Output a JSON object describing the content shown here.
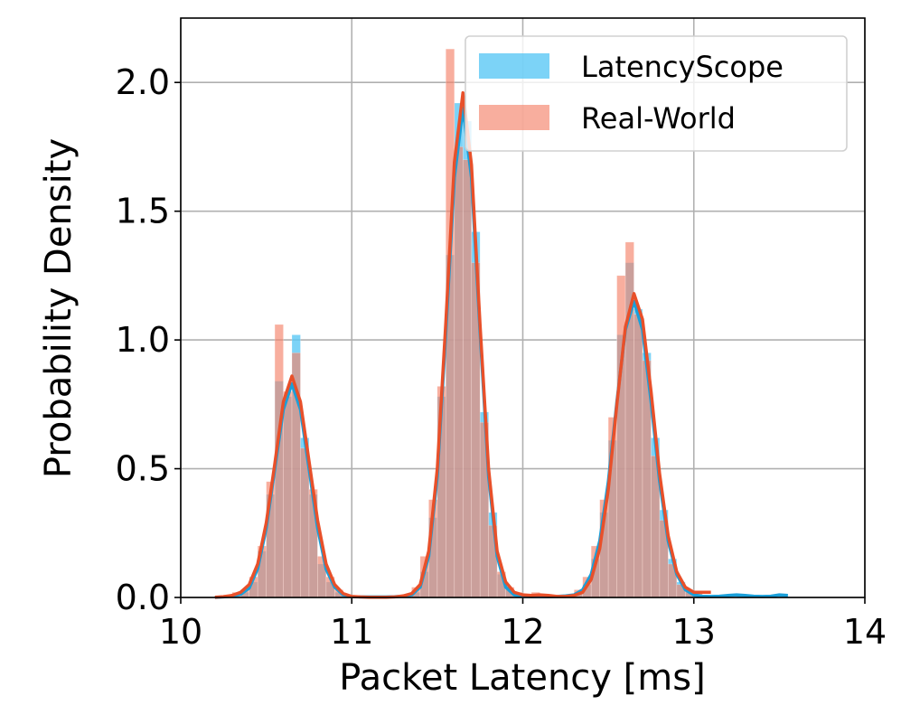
{
  "chart_data": {
    "type": "histogram",
    "xlabel": "Packet Latency [ms]",
    "ylabel": "Probability Density",
    "xlim": [
      10,
      14
    ],
    "ylim": [
      0,
      2.25
    ],
    "xticks": [
      10,
      11,
      12,
      13,
      14
    ],
    "yticks": [
      {
        "value": 0,
        "label": "0.0"
      },
      {
        "value": 0.5,
        "label": "0.5"
      },
      {
        "value": 1,
        "label": "1.0"
      },
      {
        "value": 1.5,
        "label": "1.5"
      },
      {
        "value": 2,
        "label": "2.0"
      }
    ],
    "grid": true,
    "legend": "upper right",
    "bins": [
      10.25,
      10.3,
      10.35,
      10.4,
      10.45,
      10.5,
      10.55,
      10.6,
      10.65,
      10.7,
      10.75,
      10.8,
      10.85,
      10.9,
      10.95,
      11,
      11.05,
      11.1,
      11.15,
      11.2,
      11.25,
      11.3,
      11.35,
      11.4,
      11.45,
      11.5,
      11.55,
      11.6,
      11.65,
      11.7,
      11.75,
      11.8,
      11.85,
      11.9,
      11.95,
      12,
      12.05,
      12.1,
      12.15,
      12.2,
      12.25,
      12.3,
      12.35,
      12.4,
      12.45,
      12.5,
      12.55,
      12.6,
      12.65,
      12.7,
      12.75,
      12.8,
      12.85,
      12.9,
      12.95,
      13,
      13.05,
      13.1,
      13.15,
      13.2,
      13.25,
      13.3,
      13.35,
      13.4,
      13.45,
      13.5,
      13.55
    ],
    "kde_x": [
      10.2,
      10.25,
      10.3,
      10.35,
      10.4,
      10.45,
      10.5,
      10.55,
      10.6,
      10.65,
      10.7,
      10.75,
      10.8,
      10.85,
      10.9,
      10.95,
      11,
      11.05,
      11.1,
      11.15,
      11.2,
      11.25,
      11.3,
      11.35,
      11.4,
      11.45,
      11.5,
      11.55,
      11.6,
      11.65,
      11.7,
      11.75,
      11.8,
      11.85,
      11.9,
      11.95,
      12,
      12.05,
      12.1,
      12.15,
      12.2,
      12.25,
      12.3,
      12.35,
      12.4,
      12.45,
      12.5,
      12.55,
      12.6,
      12.65,
      12.7,
      12.75,
      12.8,
      12.85,
      12.9,
      12.95,
      13,
      13.05,
      13.1,
      13.15,
      13.2,
      13.25,
      13.3,
      13.35,
      13.4,
      13.45,
      13.5,
      13.55,
      13.6
    ],
    "series": [
      {
        "name": "LatencyScope",
        "color": "#5bc8f5",
        "line_color": "#1a9fd9",
        "values": [
          0.01,
          0,
          0.02,
          0.06,
          0.18,
          0.4,
          0.84,
          0.78,
          1.02,
          0.62,
          0.4,
          0.13,
          0.06,
          0.02,
          0,
          0,
          0,
          0,
          0,
          0,
          0,
          0,
          0.02,
          0.1,
          0.31,
          0.78,
          1.33,
          1.92,
          1.85,
          1.42,
          0.72,
          0.33,
          0.09,
          0.03,
          0.01,
          0,
          0,
          0,
          0,
          0,
          0,
          0.02,
          0.05,
          0.15,
          0.33,
          0.61,
          1.02,
          1.3,
          1.12,
          0.95,
          0.62,
          0.34,
          0.15,
          0.06,
          0.02,
          0,
          0,
          0,
          0,
          0,
          0.01,
          0,
          0,
          0,
          0,
          0.01
        ],
        "kde": [
          0,
          0.002,
          0.005,
          0.012,
          0.036,
          0.112,
          0.27,
          0.5,
          0.73,
          0.83,
          0.73,
          0.5,
          0.27,
          0.11,
          0.04,
          0.01,
          0.003,
          0.002,
          0.002,
          0.002,
          0.002,
          0.003,
          0.005,
          0.01,
          0.04,
          0.16,
          0.47,
          1.03,
          1.63,
          1.9,
          1.63,
          1.03,
          0.47,
          0.16,
          0.04,
          0.01,
          0.004,
          0.003,
          0.003,
          0.003,
          0.004,
          0.006,
          0.01,
          0.03,
          0.09,
          0.22,
          0.45,
          0.76,
          1.04,
          1.15,
          1.04,
          0.76,
          0.45,
          0.22,
          0.09,
          0.03,
          0.01,
          0.005,
          0.004,
          0.005,
          0.008,
          0.01,
          0.008,
          0.005,
          0.004,
          0.005,
          0.01,
          0.008,
          null
        ]
      },
      {
        "name": "Real-World",
        "color": "#f4826a",
        "line_color": "#e8502a",
        "values": [
          0.01,
          0.02,
          0.03,
          0.08,
          0.2,
          0.45,
          1.06,
          0.8,
          0.95,
          0.58,
          0.42,
          0.16,
          0.08,
          0.03,
          0.01,
          0,
          0,
          0,
          0,
          0,
          0,
          0.01,
          0.04,
          0.16,
          0.38,
          0.82,
          2.13,
          1.75,
          1.7,
          1.3,
          0.68,
          0.28,
          0.1,
          0.04,
          0.02,
          0.01,
          0.02,
          0.01,
          0,
          0,
          0.01,
          0.03,
          0.08,
          0.2,
          0.38,
          0.7,
          1.25,
          1.38,
          1.1,
          0.92,
          0.55,
          0.3,
          0.13,
          0.05,
          0.03,
          0.02,
          0,
          0,
          0,
          0,
          0,
          0,
          0,
          0,
          0,
          0
        ],
        "kde": [
          0.001,
          0.003,
          0.008,
          0.02,
          0.05,
          0.13,
          0.29,
          0.52,
          0.76,
          0.86,
          0.76,
          0.53,
          0.3,
          0.13,
          0.05,
          0.015,
          0.004,
          0.002,
          0.001,
          0.001,
          0.001,
          0.002,
          0.006,
          0.015,
          0.05,
          0.18,
          0.5,
          1.07,
          1.69,
          1.96,
          1.68,
          1.06,
          0.5,
          0.18,
          0.06,
          0.02,
          0.01,
          0.008,
          0.01,
          0.008,
          0.004,
          0.004,
          0.008,
          0.02,
          0.07,
          0.19,
          0.42,
          0.75,
          1.05,
          1.18,
          1.08,
          0.8,
          0.48,
          0.24,
          0.1,
          0.04,
          0.02,
          0.02,
          0.02,
          null,
          null,
          null,
          null,
          null,
          null,
          null,
          null,
          null,
          null
        ]
      }
    ]
  }
}
